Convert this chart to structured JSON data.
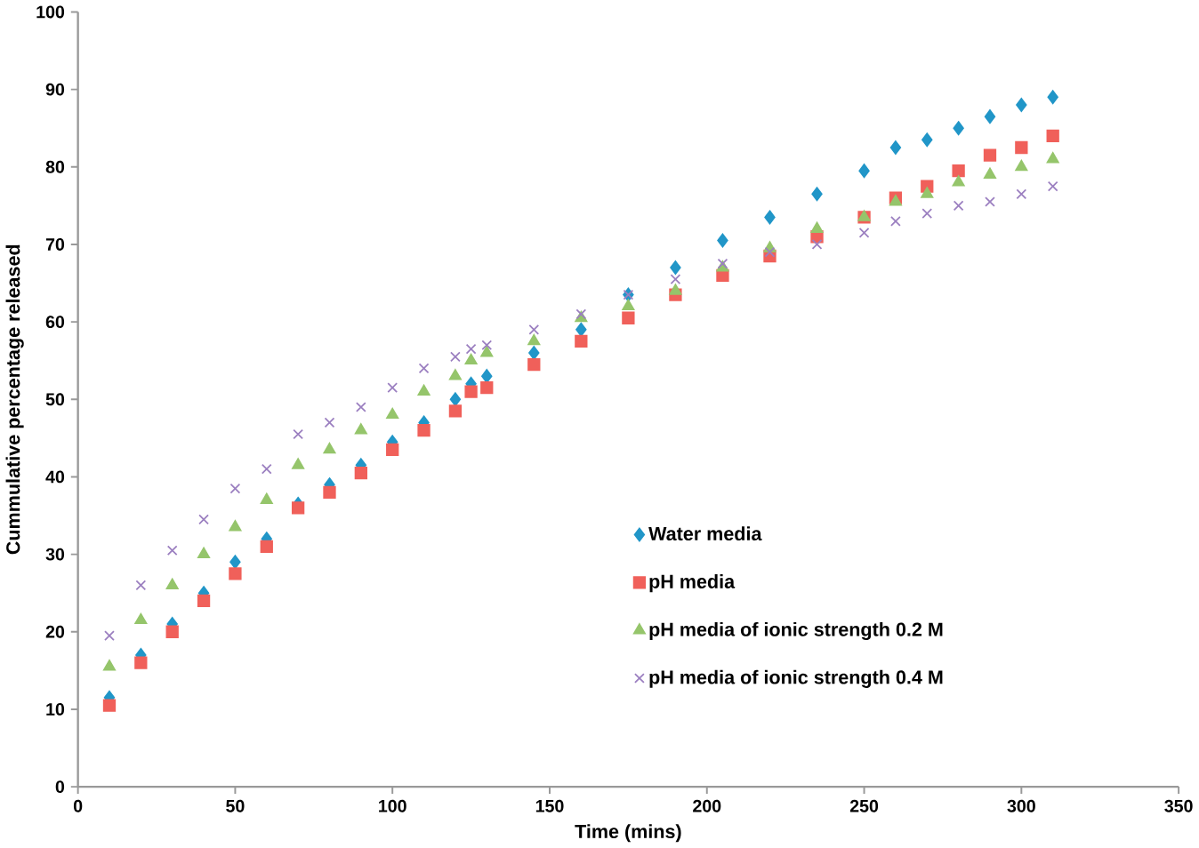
{
  "chart_data": {
    "type": "scatter",
    "xlabel": "Time (mins)",
    "ylabel": "Cummulative percentage released",
    "xlim": [
      0,
      350
    ],
    "ylim": [
      0,
      100
    ],
    "xticks": [
      0,
      50,
      100,
      150,
      200,
      250,
      300,
      350
    ],
    "yticks": [
      0,
      10,
      20,
      30,
      40,
      50,
      60,
      70,
      80,
      90,
      100
    ],
    "grid": false,
    "legend": "right",
    "x": [
      10,
      20,
      30,
      40,
      50,
      60,
      70,
      80,
      90,
      100,
      110,
      120,
      125,
      130,
      145,
      160,
      175,
      190,
      205,
      220,
      235,
      250,
      260,
      270,
      280,
      290,
      300,
      310
    ],
    "series": [
      {
        "name": "Water media",
        "color": "#2196c8",
        "marker": "diamond",
        "values": [
          11.5,
          17,
          21,
          25,
          29,
          32,
          36.5,
          39,
          41.5,
          44.5,
          47,
          50,
          52,
          53,
          56,
          59,
          63.5,
          67,
          70.5,
          73.5,
          76.5,
          79.5,
          82.5,
          83.5,
          85,
          86.5,
          88,
          89
        ]
      },
      {
        "name": "pH media",
        "color": "#f0605a",
        "marker": "square",
        "values": [
          10.5,
          16,
          20,
          24,
          27.5,
          31,
          36,
          38,
          40.5,
          43.5,
          46,
          48.5,
          51,
          51.5,
          54.5,
          57.5,
          60.5,
          63.5,
          66,
          68.5,
          71,
          73.5,
          76,
          77.5,
          79.5,
          81.5,
          82.5,
          84
        ]
      },
      {
        "name": "pH media of ionic strength 0.2 M",
        "color": "#95c56b",
        "marker": "triangle",
        "values": [
          15.5,
          21.5,
          26,
          30,
          33.5,
          37,
          41.5,
          43.5,
          46,
          48,
          51,
          53,
          55,
          56,
          57.5,
          60.5,
          62,
          64,
          67,
          69.5,
          72,
          73.5,
          75.5,
          76.5,
          78,
          79,
          80,
          81
        ]
      },
      {
        "name": "pH media of ionic strength 0.4 M",
        "color": "#9b7fc0",
        "marker": "cross",
        "values": [
          19.5,
          26,
          30.5,
          34.5,
          38.5,
          41,
          45.5,
          47,
          49,
          51.5,
          54,
          55.5,
          56.5,
          57,
          59,
          61,
          63.5,
          65.5,
          67.5,
          69,
          70,
          71.5,
          73,
          74,
          75,
          75.5,
          76.5,
          77.5
        ]
      }
    ]
  }
}
